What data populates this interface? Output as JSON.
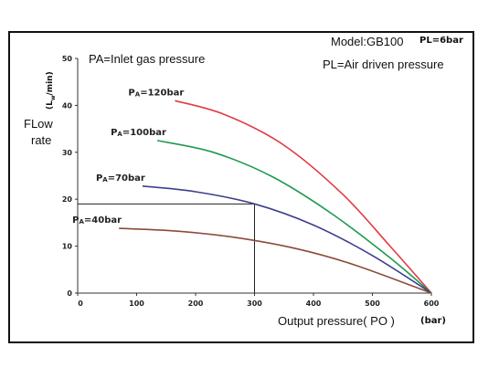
{
  "chart_data": {
    "type": "line",
    "x_axis": {
      "label": "Output pressure( PO )",
      "unit": "(bar)",
      "range": [
        0,
        600
      ],
      "ticks": [
        0,
        100,
        200,
        300,
        400,
        500,
        600
      ]
    },
    "y_axis": {
      "label_line1": "FLow",
      "label_line2": "rate",
      "unit_main": "(L",
      "unit_sub": "w",
      "unit_tail": "/min)",
      "range": [
        0,
        50
      ],
      "ticks": [
        0,
        10,
        20,
        30,
        40,
        50
      ]
    },
    "notes": {
      "pa_definition": "PA=Inlet gas pressure",
      "model": "Model:GB100",
      "pl_value": "PL=6bar",
      "pl_definition": "PL=Air driven pressure"
    },
    "series": [
      {
        "name": "120bar",
        "prefix": "P",
        "sub": "A",
        "color": "#e03a43",
        "points": [
          [
            165,
            41
          ],
          [
            250,
            38
          ],
          [
            350,
            31.5
          ],
          [
            450,
            21
          ],
          [
            530,
            10
          ],
          [
            600,
            0
          ]
        ]
      },
      {
        "name": "100bar",
        "prefix": "P",
        "sub": "A",
        "color": "#1e9a4f",
        "points": [
          [
            135,
            32.5
          ],
          [
            230,
            30
          ],
          [
            330,
            24.8
          ],
          [
            430,
            17
          ],
          [
            530,
            7.5
          ],
          [
            600,
            0
          ]
        ]
      },
      {
        "name": "70bar",
        "prefix": "P",
        "sub": "A",
        "color": "#3d3f8f",
        "points": [
          [
            110,
            22.8
          ],
          [
            200,
            21.6
          ],
          [
            300,
            19
          ],
          [
            400,
            14.5
          ],
          [
            500,
            8
          ],
          [
            600,
            0
          ]
        ]
      },
      {
        "name": "40bar",
        "prefix": "P",
        "sub": "A",
        "color": "#8b4a3c",
        "points": [
          [
            70,
            13.8
          ],
          [
            170,
            13.2
          ],
          [
            270,
            11.8
          ],
          [
            370,
            9.5
          ],
          [
            470,
            6
          ],
          [
            600,
            0
          ]
        ]
      }
    ],
    "reference": {
      "x": 300,
      "y": 19
    }
  }
}
